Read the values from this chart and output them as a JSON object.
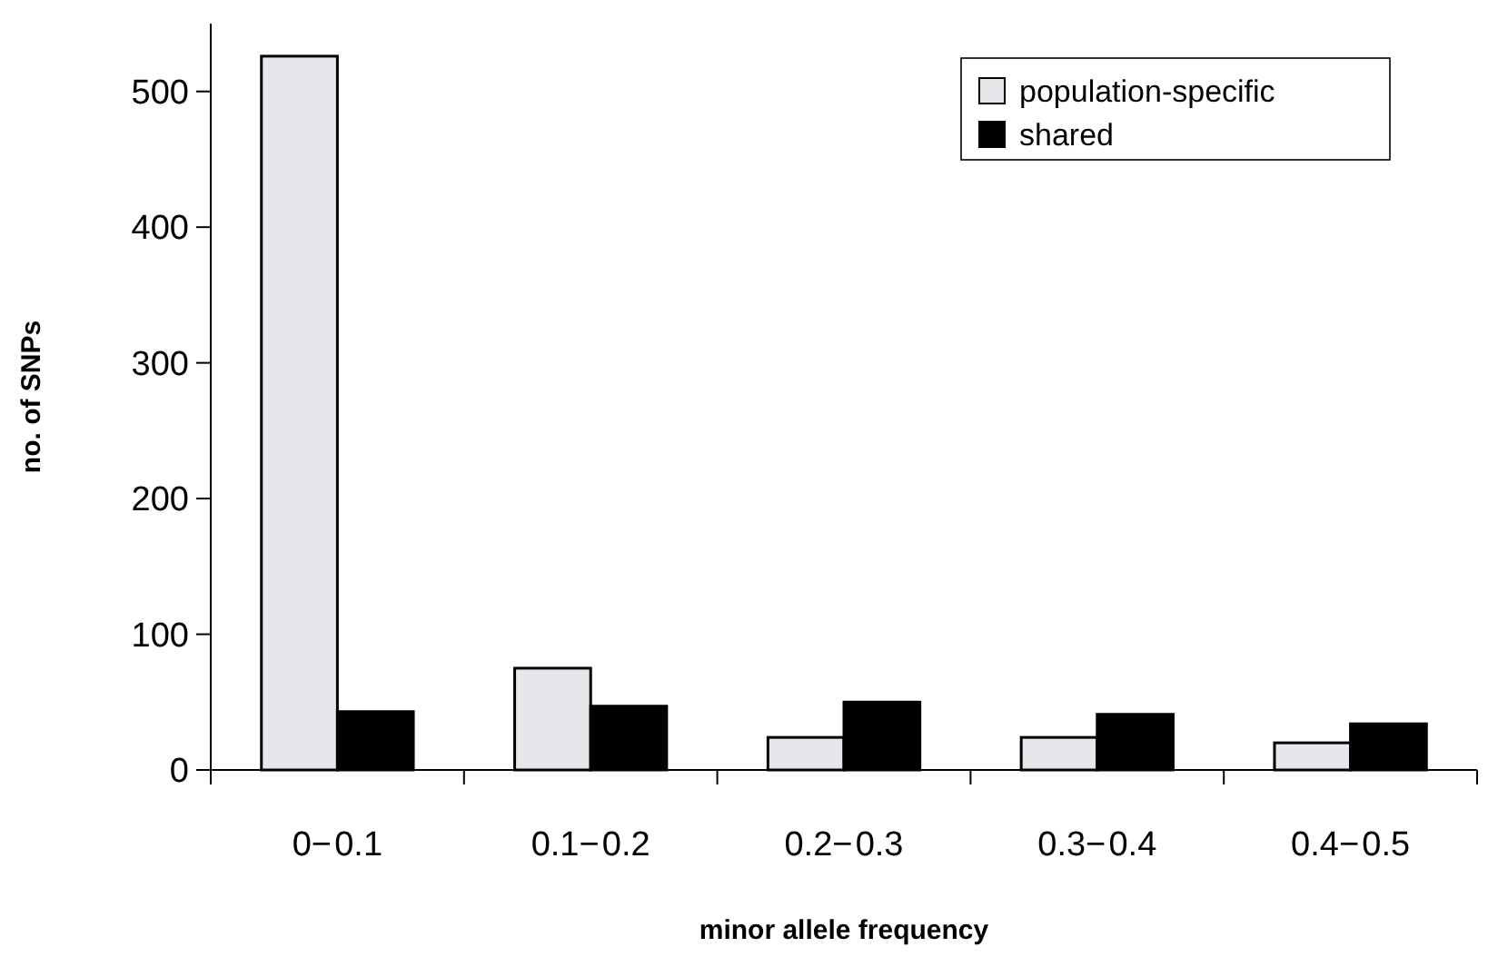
{
  "chart_data": {
    "type": "bar",
    "xlabel": "minor allele frequency",
    "ylabel": "no. of SNPs",
    "categories": [
      "0− 0.1",
      "0.1− 0.2",
      "0.2− 0.3",
      "0.3− 0.4",
      "0.4− 0.5"
    ],
    "series": [
      {
        "name": "population-specific",
        "color": "#e8e6ea",
        "values": [
          526,
          75,
          24,
          24,
          20
        ]
      },
      {
        "name": "shared",
        "color": "#000000",
        "values": [
          43,
          47,
          50,
          41,
          34
        ]
      }
    ],
    "ylim": [
      0,
      550
    ],
    "yticks": [
      0,
      100,
      200,
      300,
      400,
      500
    ],
    "grid": false,
    "legend": "top right"
  }
}
